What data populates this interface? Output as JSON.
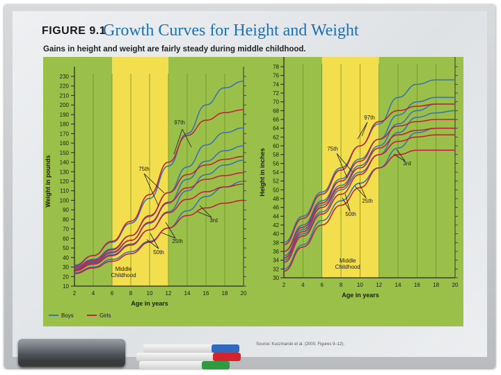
{
  "figure": {
    "label": "FIGURE 9.1",
    "title": "Growth Curves for Height and Weight",
    "subtitle": "Gains in height and weight are fairly steady during middle childhood.",
    "source": "Source: Kuczmarski et al. (2000, Figures 9–12).",
    "legend": [
      {
        "label": "Boys",
        "color": "#3a73ad"
      },
      {
        "label": "Girls",
        "color": "#c0233c"
      }
    ],
    "middle_childhood_label": [
      "Middle",
      "Childhood"
    ]
  },
  "colors": {
    "chart_bg": "#9bc04a",
    "highlight_band": "#fde24f",
    "boys": "#3a73ad",
    "girls": "#c0233c"
  },
  "chart_data": [
    {
      "type": "line",
      "xlabel": "Age in years",
      "ylabel": "Weight in pounds",
      "xlim": [
        2,
        20
      ],
      "ylim": [
        10,
        230
      ],
      "x_ticks": [
        2,
        4,
        6,
        8,
        10,
        12,
        14,
        16,
        18,
        20
      ],
      "y_ticks": [
        10,
        20,
        30,
        40,
        50,
        60,
        70,
        80,
        90,
        100,
        110,
        120,
        130,
        140,
        150,
        160,
        170,
        180,
        190,
        200,
        210,
        220,
        230
      ],
      "highlight_x": [
        6,
        12
      ],
      "x": [
        2,
        4,
        6,
        8,
        10,
        12,
        14,
        16,
        18,
        20
      ],
      "annotations": [
        "97th",
        "75th",
        "50th",
        "25th",
        "3rd"
      ],
      "series": [
        {
          "group": "Boys",
          "percentile": "97th",
          "values": [
            32,
            42,
            56,
            76,
            102,
            136,
            170,
            200,
            218,
            225
          ]
        },
        {
          "group": "Boys",
          "percentile": "75th",
          "values": [
            30,
            38,
            49,
            63,
            83,
            108,
            135,
            158,
            171,
            176
          ]
        },
        {
          "group": "Boys",
          "percentile": "50th",
          "values": [
            28,
            36,
            46,
            58,
            76,
            97,
            122,
            141,
            152,
            157
          ]
        },
        {
          "group": "Boys",
          "percentile": "25th",
          "values": [
            27,
            34,
            43,
            54,
            69,
            88,
            110,
            127,
            137,
            142
          ]
        },
        {
          "group": "Boys",
          "percentile": "3rd",
          "values": [
            24,
            30,
            38,
            46,
            57,
            71,
            89,
            104,
            114,
            120
          ]
        },
        {
          "group": "Girls",
          "percentile": "97th",
          "values": [
            31,
            42,
            57,
            78,
            106,
            140,
            168,
            184,
            192,
            195
          ]
        },
        {
          "group": "Girls",
          "percentile": "75th",
          "values": [
            29,
            37,
            48,
            63,
            84,
            108,
            127,
            137,
            143,
            146
          ]
        },
        {
          "group": "Girls",
          "percentile": "50th",
          "values": [
            27,
            35,
            45,
            58,
            77,
            98,
            113,
            122,
            126,
            129
          ]
        },
        {
          "group": "Girls",
          "percentile": "25th",
          "values": [
            26,
            33,
            42,
            53,
            69,
            87,
            101,
            109,
            114,
            117
          ]
        },
        {
          "group": "Girls",
          "percentile": "3rd",
          "values": [
            23,
            29,
            36,
            44,
            56,
            71,
            84,
            92,
            97,
            100
          ]
        }
      ]
    },
    {
      "type": "line",
      "xlabel": "Age in years",
      "ylabel": "Height in inches",
      "xlim": [
        2,
        20
      ],
      "ylim": [
        30,
        78
      ],
      "x_ticks": [
        2,
        4,
        6,
        8,
        10,
        12,
        14,
        16,
        18,
        20
      ],
      "y_ticks": [
        30,
        32,
        34,
        36,
        38,
        40,
        42,
        44,
        46,
        48,
        50,
        52,
        54,
        56,
        58,
        60,
        62,
        64,
        66,
        68,
        70,
        72,
        74,
        76,
        78
      ],
      "highlight_x": [
        6,
        12
      ],
      "x": [
        2,
        4,
        6,
        8,
        10,
        12,
        14,
        16,
        18,
        20
      ],
      "annotations": [
        "97th",
        "75th",
        "50th",
        "25th",
        "3rd"
      ],
      "series": [
        {
          "group": "Boys",
          "percentile": "97th",
          "values": [
            38,
            44,
            49.5,
            55,
            60,
            65,
            71,
            74,
            75,
            75
          ]
        },
        {
          "group": "Boys",
          "percentile": "75th",
          "values": [
            36,
            42,
            47.5,
            52.5,
            57,
            61.5,
            67,
            70,
            71,
            71
          ]
        },
        {
          "group": "Boys",
          "percentile": "50th",
          "values": [
            35,
            41,
            46.5,
            51,
            55.5,
            60,
            65,
            68,
            69.5,
            69.5
          ]
        },
        {
          "group": "Boys",
          "percentile": "25th",
          "values": [
            34,
            40,
            45,
            50,
            54,
            58,
            63,
            66.5,
            67.5,
            68
          ]
        },
        {
          "group": "Boys",
          "percentile": "3rd",
          "values": [
            32,
            37.5,
            43,
            47.5,
            51.5,
            55,
            59.5,
            63,
            64,
            64
          ]
        },
        {
          "group": "Girls",
          "percentile": "97th",
          "values": [
            37.5,
            43.5,
            49,
            54.5,
            60,
            65.5,
            68,
            69,
            69.5,
            69.5
          ]
        },
        {
          "group": "Girls",
          "percentile": "75th",
          "values": [
            36,
            41.5,
            47,
            52,
            56.5,
            61.5,
            64.5,
            65.5,
            66,
            66
          ]
        },
        {
          "group": "Girls",
          "percentile": "50th",
          "values": [
            34.5,
            40.5,
            46,
            50.5,
            55,
            59.5,
            62.5,
            63.5,
            64,
            64
          ]
        },
        {
          "group": "Girls",
          "percentile": "25th",
          "values": [
            33.5,
            39.5,
            44.5,
            49,
            53.5,
            58,
            61,
            62,
            62.5,
            62.5
          ]
        },
        {
          "group": "Girls",
          "percentile": "3rd",
          "values": [
            31.5,
            37,
            42,
            46.5,
            50.5,
            55,
            58,
            59,
            59,
            59
          ]
        }
      ]
    }
  ]
}
